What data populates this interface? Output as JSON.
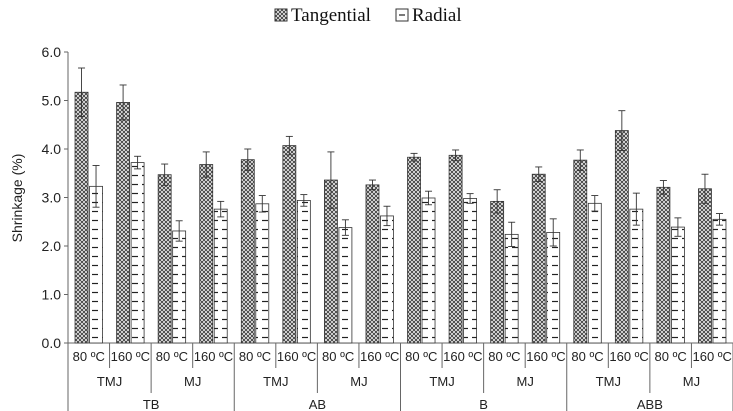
{
  "chart_data": {
    "type": "bar",
    "ylabel": "Shrinkage (%)",
    "xlabel": "",
    "ylim": [
      0,
      6
    ],
    "yticks": [
      "0.0",
      "1.0",
      "2.0",
      "3.0",
      "4.0",
      "5.0",
      "6.0"
    ],
    "grid": false,
    "legend_position": "top",
    "species": [
      "TB",
      "AB",
      "B",
      "ABB"
    ],
    "methods": [
      "TMJ",
      "MJ"
    ],
    "temperatures": [
      "80 ºC",
      "160 ºC"
    ],
    "categories": [
      "TB TMJ 80 ºC",
      "TB TMJ 160 ºC",
      "TB MJ 80 ºC",
      "TB MJ 160 ºC",
      "AB TMJ 80 ºC",
      "AB TMJ 160 ºC",
      "AB MJ 80 ºC",
      "AB MJ 160 ºC",
      "B TMJ 80 ºC",
      "B TMJ 160 ºC",
      "B MJ 80 ºC",
      "B MJ 160 ºC",
      "ABB TMJ 80 ºC",
      "ABB TMJ 160 ºC",
      "ABB MJ 80 ºC",
      "ABB MJ 160 ºC"
    ],
    "series": [
      {
        "name": "Tangential",
        "values": [
          5.17,
          4.96,
          3.47,
          3.68,
          3.78,
          4.07,
          3.36,
          3.26,
          3.83,
          3.87,
          2.92,
          3.48,
          3.77,
          4.38,
          3.21,
          3.18
        ],
        "errors": [
          0.5,
          0.36,
          0.22,
          0.26,
          0.22,
          0.19,
          0.58,
          0.1,
          0.08,
          0.11,
          0.24,
          0.15,
          0.21,
          0.41,
          0.14,
          0.3
        ]
      },
      {
        "name": "Radial",
        "values": [
          3.23,
          3.72,
          2.31,
          2.76,
          2.87,
          2.94,
          2.38,
          2.62,
          2.99,
          2.98,
          2.24,
          2.28,
          2.88,
          2.76,
          2.39,
          2.55
        ],
        "errors": [
          0.43,
          0.13,
          0.21,
          0.16,
          0.17,
          0.12,
          0.16,
          0.2,
          0.14,
          0.1,
          0.25,
          0.28,
          0.16,
          0.33,
          0.19,
          0.12
        ]
      }
    ],
    "colors": {
      "tangential_fill": "#6a6a6a",
      "bar_stroke": "#333333",
      "axis": "#666666"
    }
  }
}
